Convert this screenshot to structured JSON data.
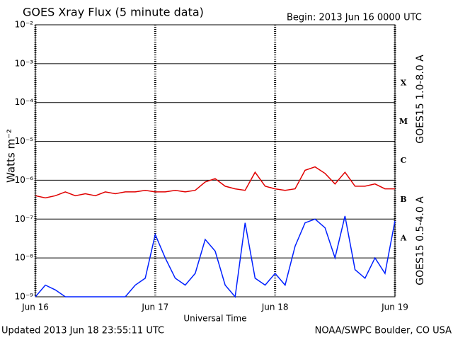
{
  "chart_data": {
    "type": "line",
    "title": "GOES Xray Flux (5 minute data)",
    "subtitle": "Begin:  2013 Jun 16 0000 UTC",
    "footer_left": "Updated 2013 Jun 18 23:55:11 UTC",
    "footer_right": "NOAA/SWPC Boulder, CO USA",
    "xlabel": "Universal Time",
    "ylabel": "Watts m⁻²",
    "log_y": true,
    "grid": true,
    "xlim": [
      0,
      72
    ],
    "xticks": [
      {
        "value": 0,
        "label": "Jun 16"
      },
      {
        "value": 24,
        "label": "Jun 17"
      },
      {
        "value": 48,
        "label": "Jun 18"
      },
      {
        "value": 72,
        "label": "Jun 19"
      }
    ],
    "ylim": [
      1e-09,
      0.01
    ],
    "yticks": [
      {
        "value": 1e-09,
        "label": "10⁻⁹"
      },
      {
        "value": 1e-08,
        "label": "10⁻⁸"
      },
      {
        "value": 1e-07,
        "label": "10⁻⁷"
      },
      {
        "value": 1e-06,
        "label": "10⁻⁶"
      },
      {
        "value": 1e-05,
        "label": "10⁻⁵"
      },
      {
        "value": 0.0001,
        "label": "10⁻⁴"
      },
      {
        "value": 0.001,
        "label": "10⁻³"
      },
      {
        "value": 0.01,
        "label": "10⁻²"
      }
    ],
    "flare_classes": [
      {
        "label": "A",
        "value": 1e-08
      },
      {
        "label": "B",
        "value": 1e-07
      },
      {
        "label": "C",
        "value": 1e-06
      },
      {
        "label": "M",
        "value": 1e-05
      },
      {
        "label": "X",
        "value": 0.0001
      }
    ],
    "x": [
      0,
      2,
      4,
      6,
      8,
      10,
      12,
      14,
      16,
      18,
      20,
      22,
      24,
      26,
      28,
      30,
      32,
      34,
      36,
      38,
      40,
      42,
      44,
      46,
      48,
      50,
      52,
      54,
      56,
      58,
      60,
      62,
      64,
      66,
      68,
      70,
      72
    ],
    "series": [
      {
        "name": "GOES15 1.0-8.0 A",
        "color": "#e00000",
        "values": [
          4e-07,
          3.5e-07,
          4e-07,
          5e-07,
          4e-07,
          4.5e-07,
          4e-07,
          5e-07,
          4.5e-07,
          5e-07,
          5e-07,
          5.5e-07,
          5e-07,
          5e-07,
          5.5e-07,
          5e-07,
          5.5e-07,
          9e-07,
          1.1e-06,
          7e-07,
          6e-07,
          5.5e-07,
          1.6e-06,
          7e-07,
          6e-07,
          5.5e-07,
          6e-07,
          1.8e-06,
          2.2e-06,
          1.5e-06,
          8e-07,
          1.6e-06,
          7e-07,
          7e-07,
          8e-07,
          6e-07,
          6e-07
        ]
      },
      {
        "name": "GOES15 0.5-4.0 A",
        "color": "#0020ff",
        "values": [
          1e-09,
          2e-09,
          1.5e-09,
          1e-09,
          1e-09,
          1e-09,
          1e-09,
          1e-09,
          1e-09,
          1e-09,
          2e-09,
          3e-09,
          4e-08,
          1e-08,
          3e-09,
          2e-09,
          4e-09,
          3e-08,
          1.5e-08,
          2e-09,
          1e-09,
          8e-08,
          3e-09,
          2e-09,
          4e-09,
          2e-09,
          2e-08,
          8e-08,
          1e-07,
          6e-08,
          1e-08,
          1.2e-07,
          5e-09,
          3e-09,
          1e-08,
          4e-09,
          9e-08
        ]
      }
    ]
  }
}
